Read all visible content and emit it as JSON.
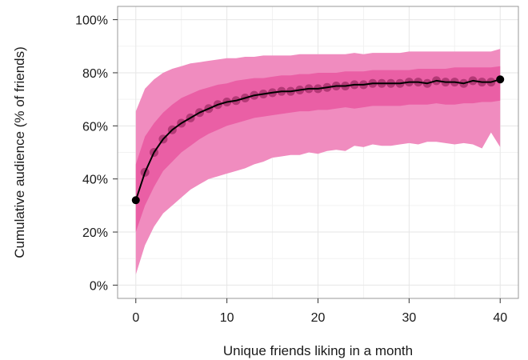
{
  "chart_data": {
    "type": "line",
    "title": "",
    "xlabel": "Unique friends liking in a month",
    "ylabel": "Cumulative audience (% of friends)",
    "xlim": [
      -2,
      42
    ],
    "ylim": [
      -5,
      105
    ],
    "xticks": [
      0,
      10,
      20,
      30,
      40
    ],
    "xtick_labels": [
      "0",
      "10",
      "20",
      "30",
      "40"
    ],
    "yticks": [
      0,
      20,
      40,
      60,
      80,
      100
    ],
    "ytick_labels": [
      "0%",
      "20%",
      "40%",
      "60%",
      "80%",
      "100%"
    ],
    "grid": true,
    "legend": "none",
    "colors": {
      "outer_band": "#f08cbf",
      "inner_band": "#ea5fa5",
      "line": "#000000",
      "points": "#9b2a62",
      "grid": "#e6e6e6",
      "frame": "#999999"
    },
    "x": [
      0,
      1,
      2,
      3,
      4,
      5,
      6,
      7,
      8,
      9,
      10,
      11,
      12,
      13,
      14,
      15,
      16,
      17,
      18,
      19,
      20,
      21,
      22,
      23,
      24,
      25,
      26,
      27,
      28,
      29,
      30,
      31,
      32,
      33,
      34,
      35,
      36,
      37,
      38,
      39,
      40
    ],
    "series": [
      {
        "values": [
          32,
          42.5,
          50,
          55,
          58.5,
          61,
          63,
          65,
          66.5,
          68,
          69,
          69.5,
          70.5,
          71.5,
          72,
          72.5,
          73,
          73,
          73.5,
          74,
          74,
          74.5,
          75,
          75,
          75.5,
          75.5,
          76,
          76,
          76,
          76,
          76.5,
          76.5,
          76,
          77,
          76.5,
          76.5,
          76,
          77,
          76.5,
          76.5,
          77.5
        ]
      }
    ],
    "outer_band": {
      "lower": [
        4,
        15,
        22,
        27,
        30,
        33,
        36,
        38,
        40,
        41,
        42,
        43,
        44,
        45.5,
        46.5,
        48,
        48.5,
        49,
        49,
        50,
        49.5,
        50.5,
        51,
        50.5,
        52.5,
        52,
        53,
        52.5,
        52.5,
        53,
        53.5,
        53,
        54,
        54,
        53.5,
        53,
        53.5,
        53,
        51.5,
        57.5,
        52
      ],
      "upper": [
        65.5,
        74,
        77.5,
        80,
        81.5,
        82.5,
        83.5,
        84,
        84.5,
        85,
        85.5,
        85.5,
        86,
        86,
        86.5,
        86.5,
        86.5,
        86.5,
        87,
        87,
        87,
        87,
        87,
        87,
        87.5,
        87,
        87.5,
        87.5,
        87.5,
        87.5,
        88,
        88,
        88,
        88,
        88,
        88,
        88,
        88,
        88,
        88,
        89
      ]
    },
    "inner_band": {
      "lower": [
        20,
        30,
        37,
        43,
        46.5,
        50,
        52.5,
        55,
        57,
        58.5,
        60,
        61,
        62,
        63,
        63.5,
        64,
        64.5,
        65,
        65.5,
        65.5,
        66,
        66,
        66.5,
        67,
        66.5,
        67,
        67.5,
        67.5,
        67.5,
        67.5,
        68,
        68,
        68,
        68.5,
        68,
        68,
        68.5,
        68.5,
        69,
        69,
        69.5
      ],
      "upper": [
        45.5,
        56,
        61,
        65,
        68,
        70.5,
        72,
        73.5,
        74.5,
        75.5,
        76,
        77,
        77.5,
        78,
        78,
        78.5,
        79,
        79,
        79.5,
        79.5,
        80,
        80,
        80,
        80.5,
        80.5,
        80.5,
        81,
        81,
        81,
        81,
        81,
        81.5,
        81.5,
        81.5,
        81.5,
        82,
        82,
        82,
        82,
        82,
        82.5
      ]
    }
  }
}
